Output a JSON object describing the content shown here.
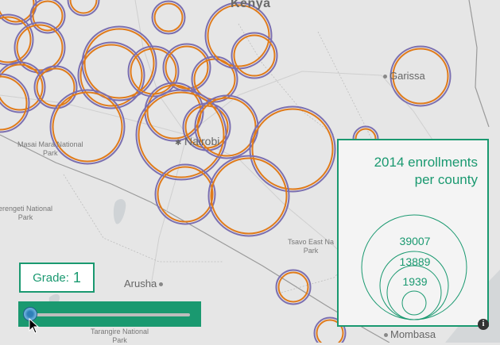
{
  "map": {
    "country_label": "Kenya",
    "cities": [
      {
        "name": "Garissa",
        "marker": "dot"
      },
      {
        "name": "Nairobi",
        "marker": "star"
      },
      {
        "name": "Arusha",
        "marker": "dot"
      },
      {
        "name": "Mombasa",
        "marker": "dot"
      }
    ],
    "parks": [
      {
        "name": "Masai Mara National Park"
      },
      {
        "name": "Serengeti National Park"
      },
      {
        "name": "Tsavo East National Park"
      },
      {
        "name": "Tarangire National Park"
      }
    ],
    "colors": {
      "land": "#e6e6e6",
      "circle_series_a": "#e07b1a",
      "circle_series_b": "#7b6fb0",
      "accent": "#1a9970"
    }
  },
  "labels": {
    "kenya": "Kenya",
    "garissa": "Garissa",
    "nairobi": "Nairobi",
    "arusha": "Arusha",
    "mombasa": "Mombasa",
    "masai_mara_1": "Masai Mara National",
    "masai_mara_2": "Park",
    "serengeti_1": "erengeti National",
    "serengeti_2": "Park",
    "tsavo_1": "Tsavo East Na",
    "tsavo_2": "Park",
    "tarangire_1": "Tarangire National",
    "tarangire_2": "Park"
  },
  "grade_control": {
    "label": "Grade:",
    "value": "1",
    "slider_fraction": 0.0
  },
  "legend": {
    "title_line1": "2014 enrollments",
    "title_line2": "per county",
    "values": [
      "39007",
      "13889",
      "1939"
    ]
  },
  "info_button": {
    "icon": "info-icon",
    "glyph": "i"
  }
}
